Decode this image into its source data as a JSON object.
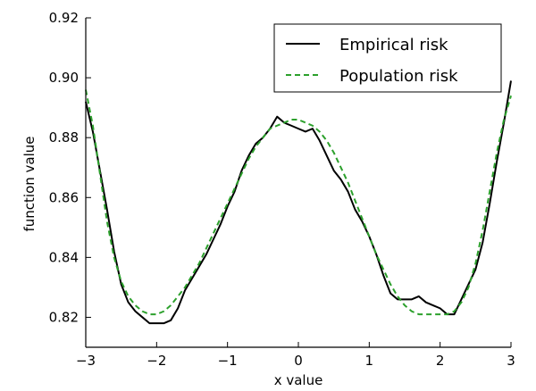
{
  "chart_data": {
    "type": "line",
    "title": "",
    "xlabel": "x value",
    "ylabel": "function value",
    "xlim": [
      -3,
      3
    ],
    "ylim": [
      0.81,
      0.92
    ],
    "x_ticks": [
      -3,
      -2,
      -1,
      0,
      1,
      2,
      3
    ],
    "x_tick_labels": [
      "−3",
      "−2",
      "−1",
      "0",
      "1",
      "2",
      "3"
    ],
    "y_ticks": [
      0.82,
      0.84,
      0.86,
      0.88,
      0.9,
      0.92
    ],
    "y_tick_labels": [
      "0.82",
      "0.84",
      "0.86",
      "0.88",
      "0.90",
      "0.92"
    ],
    "grid": false,
    "legend_position": "top-right",
    "series": [
      {
        "name": "Empirical risk",
        "color": "#000000",
        "style": "solid",
        "x": [
          -3.0,
          -2.9,
          -2.8,
          -2.7,
          -2.6,
          -2.5,
          -2.4,
          -2.3,
          -2.2,
          -2.1,
          -2.0,
          -1.9,
          -1.8,
          -1.7,
          -1.6,
          -1.5,
          -1.4,
          -1.3,
          -1.2,
          -1.1,
          -1.0,
          -0.9,
          -0.8,
          -0.7,
          -0.6,
          -0.5,
          -0.4,
          -0.3,
          -0.2,
          -0.1,
          0.0,
          0.1,
          0.2,
          0.3,
          0.4,
          0.5,
          0.6,
          0.7,
          0.8,
          0.9,
          1.0,
          1.1,
          1.2,
          1.3,
          1.4,
          1.5,
          1.6,
          1.7,
          1.8,
          1.9,
          2.0,
          2.1,
          2.2,
          2.3,
          2.4,
          2.5,
          2.6,
          2.7,
          2.8,
          2.9,
          3.0
        ],
        "y": [
          0.892,
          0.882,
          0.869,
          0.856,
          0.842,
          0.831,
          0.825,
          0.822,
          0.82,
          0.818,
          0.818,
          0.818,
          0.819,
          0.823,
          0.829,
          0.833,
          0.837,
          0.841,
          0.846,
          0.851,
          0.857,
          0.862,
          0.869,
          0.874,
          0.878,
          0.88,
          0.883,
          0.887,
          0.885,
          0.884,
          0.883,
          0.882,
          0.883,
          0.879,
          0.874,
          0.869,
          0.866,
          0.862,
          0.856,
          0.852,
          0.847,
          0.841,
          0.834,
          0.828,
          0.826,
          0.826,
          0.826,
          0.827,
          0.825,
          0.824,
          0.823,
          0.821,
          0.821,
          0.826,
          0.831,
          0.836,
          0.845,
          0.858,
          0.872,
          0.885,
          0.899
        ]
      },
      {
        "name": "Population risk",
        "color": "#2ca02c",
        "style": "dashed",
        "x": [
          -3.0,
          -2.9,
          -2.8,
          -2.7,
          -2.6,
          -2.5,
          -2.4,
          -2.3,
          -2.2,
          -2.1,
          -2.0,
          -1.9,
          -1.8,
          -1.7,
          -1.6,
          -1.5,
          -1.4,
          -1.3,
          -1.2,
          -1.1,
          -1.0,
          -0.9,
          -0.8,
          -0.7,
          -0.6,
          -0.5,
          -0.4,
          -0.3,
          -0.2,
          -0.1,
          0.0,
          0.1,
          0.2,
          0.3,
          0.4,
          0.5,
          0.6,
          0.7,
          0.8,
          0.9,
          1.0,
          1.1,
          1.2,
          1.3,
          1.4,
          1.5,
          1.6,
          1.7,
          1.8,
          1.9,
          2.0,
          2.1,
          2.2,
          2.3,
          2.4,
          2.5,
          2.6,
          2.7,
          2.8,
          2.9,
          3.0
        ],
        "y": [
          0.896,
          0.884,
          0.868,
          0.852,
          0.84,
          0.832,
          0.827,
          0.824,
          0.822,
          0.821,
          0.821,
          0.822,
          0.824,
          0.827,
          0.83,
          0.834,
          0.838,
          0.843,
          0.848,
          0.853,
          0.858,
          0.863,
          0.868,
          0.873,
          0.877,
          0.88,
          0.883,
          0.884,
          0.885,
          0.886,
          0.886,
          0.885,
          0.884,
          0.882,
          0.879,
          0.875,
          0.87,
          0.865,
          0.859,
          0.853,
          0.847,
          0.841,
          0.836,
          0.831,
          0.827,
          0.824,
          0.822,
          0.821,
          0.821,
          0.821,
          0.821,
          0.821,
          0.822,
          0.825,
          0.83,
          0.838,
          0.849,
          0.862,
          0.875,
          0.886,
          0.894
        ]
      }
    ]
  }
}
